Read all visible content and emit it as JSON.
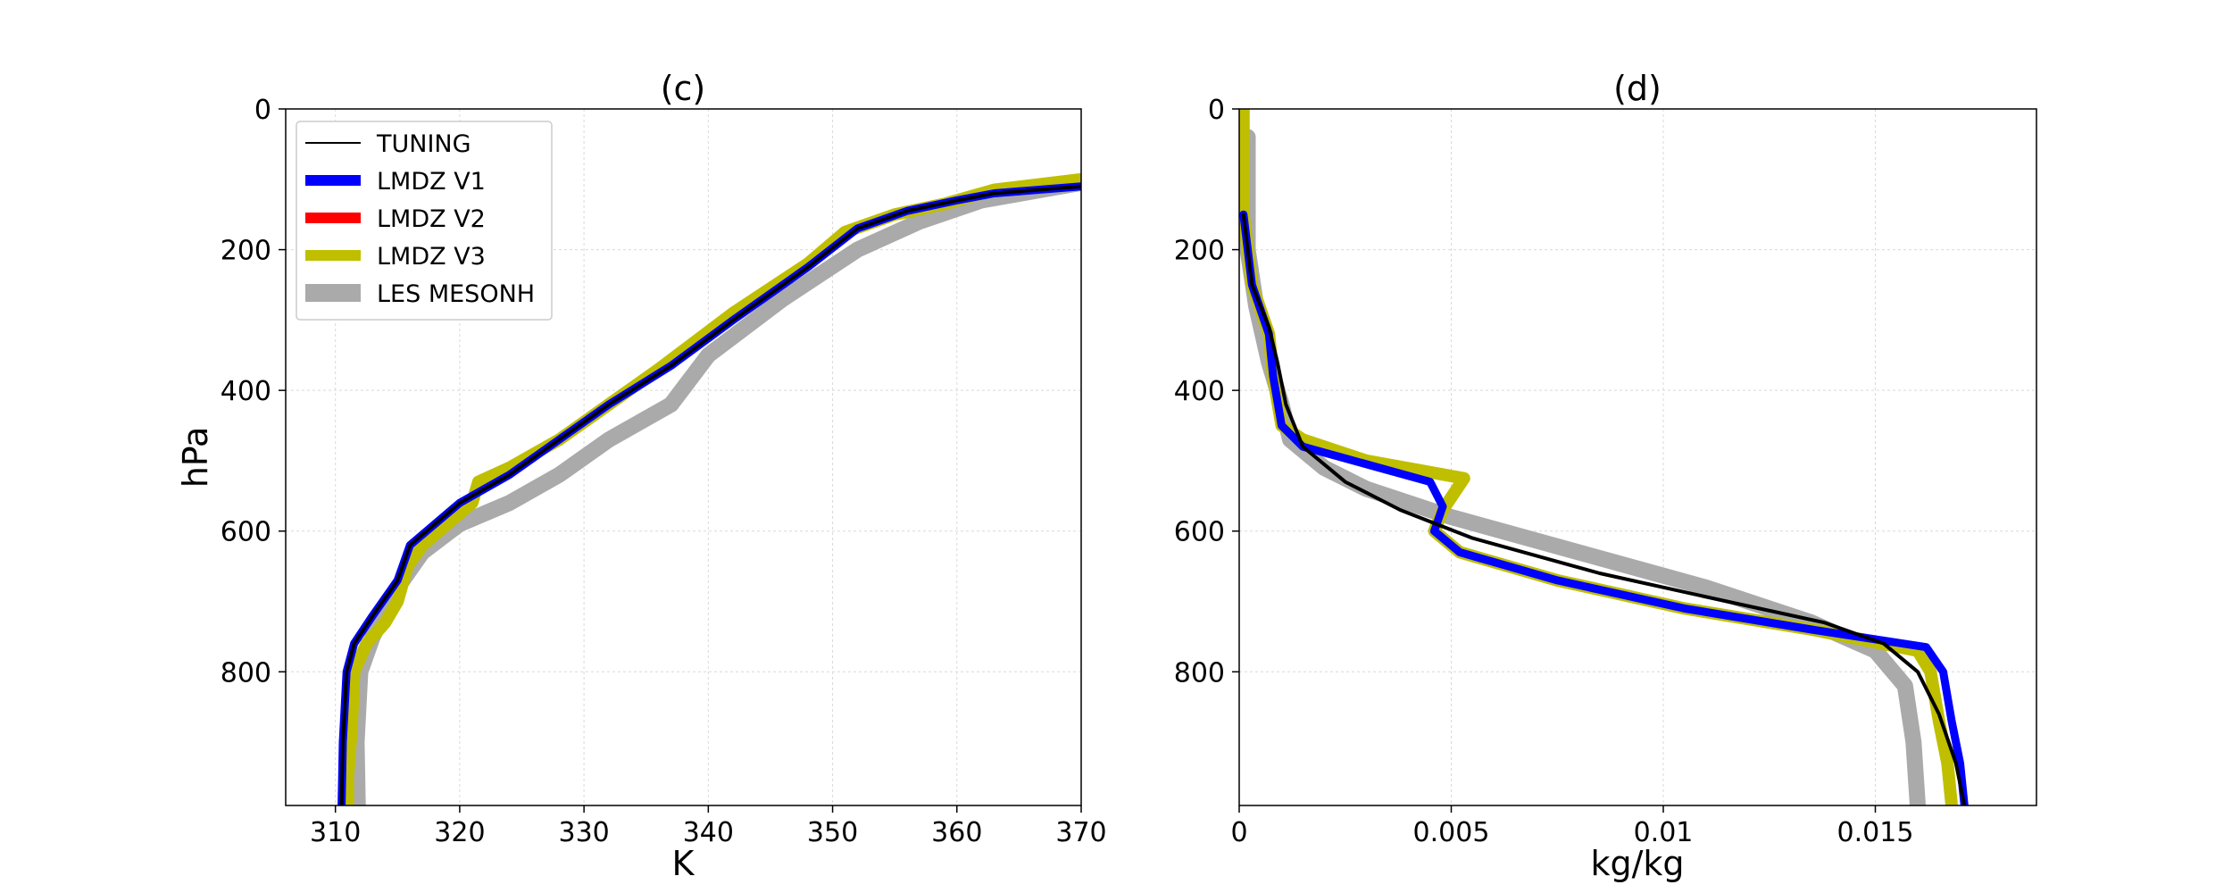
{
  "chart_data": [
    {
      "type": "line",
      "title": "(c)",
      "xlabel": "K",
      "ylabel": "hPa",
      "xlim": [
        306,
        370
      ],
      "ylim": [
        990,
        0
      ],
      "xticks": [
        "310",
        "320",
        "330",
        "340",
        "350",
        "360",
        "370"
      ],
      "yticks": [
        "0",
        "200",
        "400",
        "600",
        "800"
      ],
      "grid": true,
      "legend": {
        "position": "top-left",
        "entries": [
          {
            "label": "TUNING",
            "color": "#000000",
            "style": "thin"
          },
          {
            "label": "LMDZ V1",
            "color": "#0000ff",
            "style": "thick"
          },
          {
            "label": "LMDZ V2",
            "color": "#ff0000",
            "style": "thick"
          },
          {
            "label": "LMDZ V3",
            "color": "#bfbf00",
            "style": "thick"
          },
          {
            "label": "LES MESONH",
            "color": "#aaaaaa",
            "style": "thickest"
          }
        ]
      },
      "series": [
        {
          "name": "LES MESONH",
          "color": "#aaaaaa",
          "points": [
            [
              311.8,
              990
            ],
            [
              311.7,
              900
            ],
            [
              312.0,
              800
            ],
            [
              313.0,
              750
            ],
            [
              315.0,
              680
            ],
            [
              317.0,
              630
            ],
            [
              320.0,
              590
            ],
            [
              324.0,
              560
            ],
            [
              328.0,
              520
            ],
            [
              332.0,
              470
            ],
            [
              337.0,
              420
            ],
            [
              340.0,
              350
            ],
            [
              346.0,
              270
            ],
            [
              352.0,
              200
            ],
            [
              357.0,
              160
            ],
            [
              362.0,
              130
            ],
            [
              370.0,
              105
            ]
          ]
        },
        {
          "name": "LMDZ V3",
          "color": "#bfbf00",
          "points": [
            [
              311.0,
              990
            ],
            [
              311.0,
              950
            ],
            [
              311.3,
              880
            ],
            [
              311.5,
              800
            ],
            [
              312.5,
              760
            ],
            [
              314.0,
              730
            ],
            [
              315.0,
              700
            ],
            [
              315.8,
              650
            ],
            [
              317.0,
              620
            ],
            [
              319.0,
              590
            ],
            [
              321.0,
              560
            ],
            [
              321.5,
              530
            ],
            [
              324.0,
              510
            ],
            [
              328.0,
              470
            ],
            [
              332.0,
              420
            ],
            [
              336.0,
              370
            ],
            [
              342.0,
              290
            ],
            [
              348.0,
              220
            ],
            [
              351.0,
              175
            ],
            [
              355.0,
              150
            ],
            [
              359.0,
              135
            ],
            [
              363.0,
              115
            ],
            [
              370.0,
              100
            ]
          ]
        },
        {
          "name": "LMDZ V1",
          "color": "#0000ff",
          "points": [
            [
              310.5,
              990
            ],
            [
              310.6,
              900
            ],
            [
              310.9,
              800
            ],
            [
              311.5,
              760
            ],
            [
              313.0,
              720
            ],
            [
              315.0,
              670
            ],
            [
              316.0,
              620
            ],
            [
              318.0,
              590
            ],
            [
              320.0,
              560
            ],
            [
              324.0,
              520
            ],
            [
              328.0,
              470
            ],
            [
              332.0,
              420
            ],
            [
              337.0,
              365
            ],
            [
              342.0,
              300
            ],
            [
              348.0,
              225
            ],
            [
              352.0,
              170
            ],
            [
              356.0,
              145
            ],
            [
              360.0,
              130
            ],
            [
              363.0,
              120
            ],
            [
              370.0,
              110
            ]
          ]
        },
        {
          "name": "TUNING",
          "color": "#000000",
          "points": [
            [
              310.5,
              990
            ],
            [
              310.6,
              900
            ],
            [
              310.9,
              800
            ],
            [
              311.5,
              760
            ],
            [
              313.0,
              720
            ],
            [
              315.0,
              670
            ],
            [
              316.0,
              620
            ],
            [
              318.0,
              590
            ],
            [
              320.0,
              560
            ],
            [
              324.0,
              520
            ],
            [
              328.0,
              470
            ],
            [
              332.0,
              420
            ],
            [
              337.0,
              365
            ],
            [
              342.0,
              300
            ],
            [
              348.0,
              225
            ],
            [
              352.0,
              170
            ],
            [
              356.0,
              145
            ],
            [
              360.0,
              130
            ],
            [
              363.0,
              120
            ],
            [
              370.0,
              110
            ]
          ]
        }
      ]
    },
    {
      "type": "line",
      "title": "(d)",
      "xlabel": "kg/kg",
      "ylabel": "",
      "xlim": [
        0,
        0.0188
      ],
      "ylim": [
        990,
        0
      ],
      "xticks": [
        "0",
        "0.005",
        "0.01",
        "0.015"
      ],
      "yticks": [
        "0",
        "200",
        "400",
        "600",
        "800"
      ],
      "grid": true,
      "series": [
        {
          "name": "LES MESONH",
          "color": "#aaaaaa",
          "points": [
            [
              0.0002,
              40
            ],
            [
              0.0002,
              200
            ],
            [
              0.0004,
              280
            ],
            [
              0.0007,
              360
            ],
            [
              0.001,
              420
            ],
            [
              0.0012,
              470
            ],
            [
              0.002,
              510
            ],
            [
              0.003,
              540
            ],
            [
              0.005,
              580
            ],
            [
              0.008,
              630
            ],
            [
              0.011,
              680
            ],
            [
              0.0135,
              730
            ],
            [
              0.015,
              770
            ],
            [
              0.0157,
              820
            ],
            [
              0.0159,
              900
            ],
            [
              0.016,
              990
            ]
          ]
        },
        {
          "name": "LMDZ V3",
          "color": "#bfbf00",
          "points": [
            [
              0.0001,
              0
            ],
            [
              0.0001,
              150
            ],
            [
              0.0003,
              250
            ],
            [
              0.0007,
              320
            ],
            [
              0.0008,
              380
            ],
            [
              0.001,
              450
            ],
            [
              0.0015,
              470
            ],
            [
              0.003,
              500
            ],
            [
              0.0053,
              525
            ],
            [
              0.0048,
              570
            ],
            [
              0.0046,
              600
            ],
            [
              0.0052,
              630
            ],
            [
              0.0075,
              670
            ],
            [
              0.0105,
              710
            ],
            [
              0.0135,
              740
            ],
            [
              0.016,
              770
            ],
            [
              0.0163,
              800
            ],
            [
              0.0165,
              870
            ],
            [
              0.0167,
              930
            ],
            [
              0.0168,
              990
            ]
          ]
        },
        {
          "name": "LMDZ V1",
          "color": "#0000ff",
          "points": [
            [
              0.0001,
              150
            ],
            [
              0.0003,
              250
            ],
            [
              0.0007,
              320
            ],
            [
              0.0008,
              380
            ],
            [
              0.001,
              450
            ],
            [
              0.0015,
              480
            ],
            [
              0.0045,
              530
            ],
            [
              0.0048,
              565
            ],
            [
              0.0046,
              600
            ],
            [
              0.0052,
              630
            ],
            [
              0.0075,
              670
            ],
            [
              0.0105,
              710
            ],
            [
              0.0135,
              740
            ],
            [
              0.0162,
              765
            ],
            [
              0.0166,
              800
            ],
            [
              0.0168,
              870
            ],
            [
              0.017,
              930
            ],
            [
              0.0171,
              990
            ]
          ]
        },
        {
          "name": "TUNING",
          "color": "#000000",
          "points": [
            [
              0.0001,
              150
            ],
            [
              0.0003,
              250
            ],
            [
              0.0007,
              310
            ],
            [
              0.0009,
              360
            ],
            [
              0.0011,
              420
            ],
            [
              0.0015,
              480
            ],
            [
              0.0025,
              530
            ],
            [
              0.0038,
              570
            ],
            [
              0.0055,
              610
            ],
            [
              0.0085,
              660
            ],
            [
              0.0115,
              700
            ],
            [
              0.0138,
              730
            ],
            [
              0.0152,
              760
            ],
            [
              0.016,
              800
            ],
            [
              0.0165,
              860
            ],
            [
              0.0169,
              930
            ],
            [
              0.0171,
              990
            ]
          ]
        }
      ]
    }
  ]
}
